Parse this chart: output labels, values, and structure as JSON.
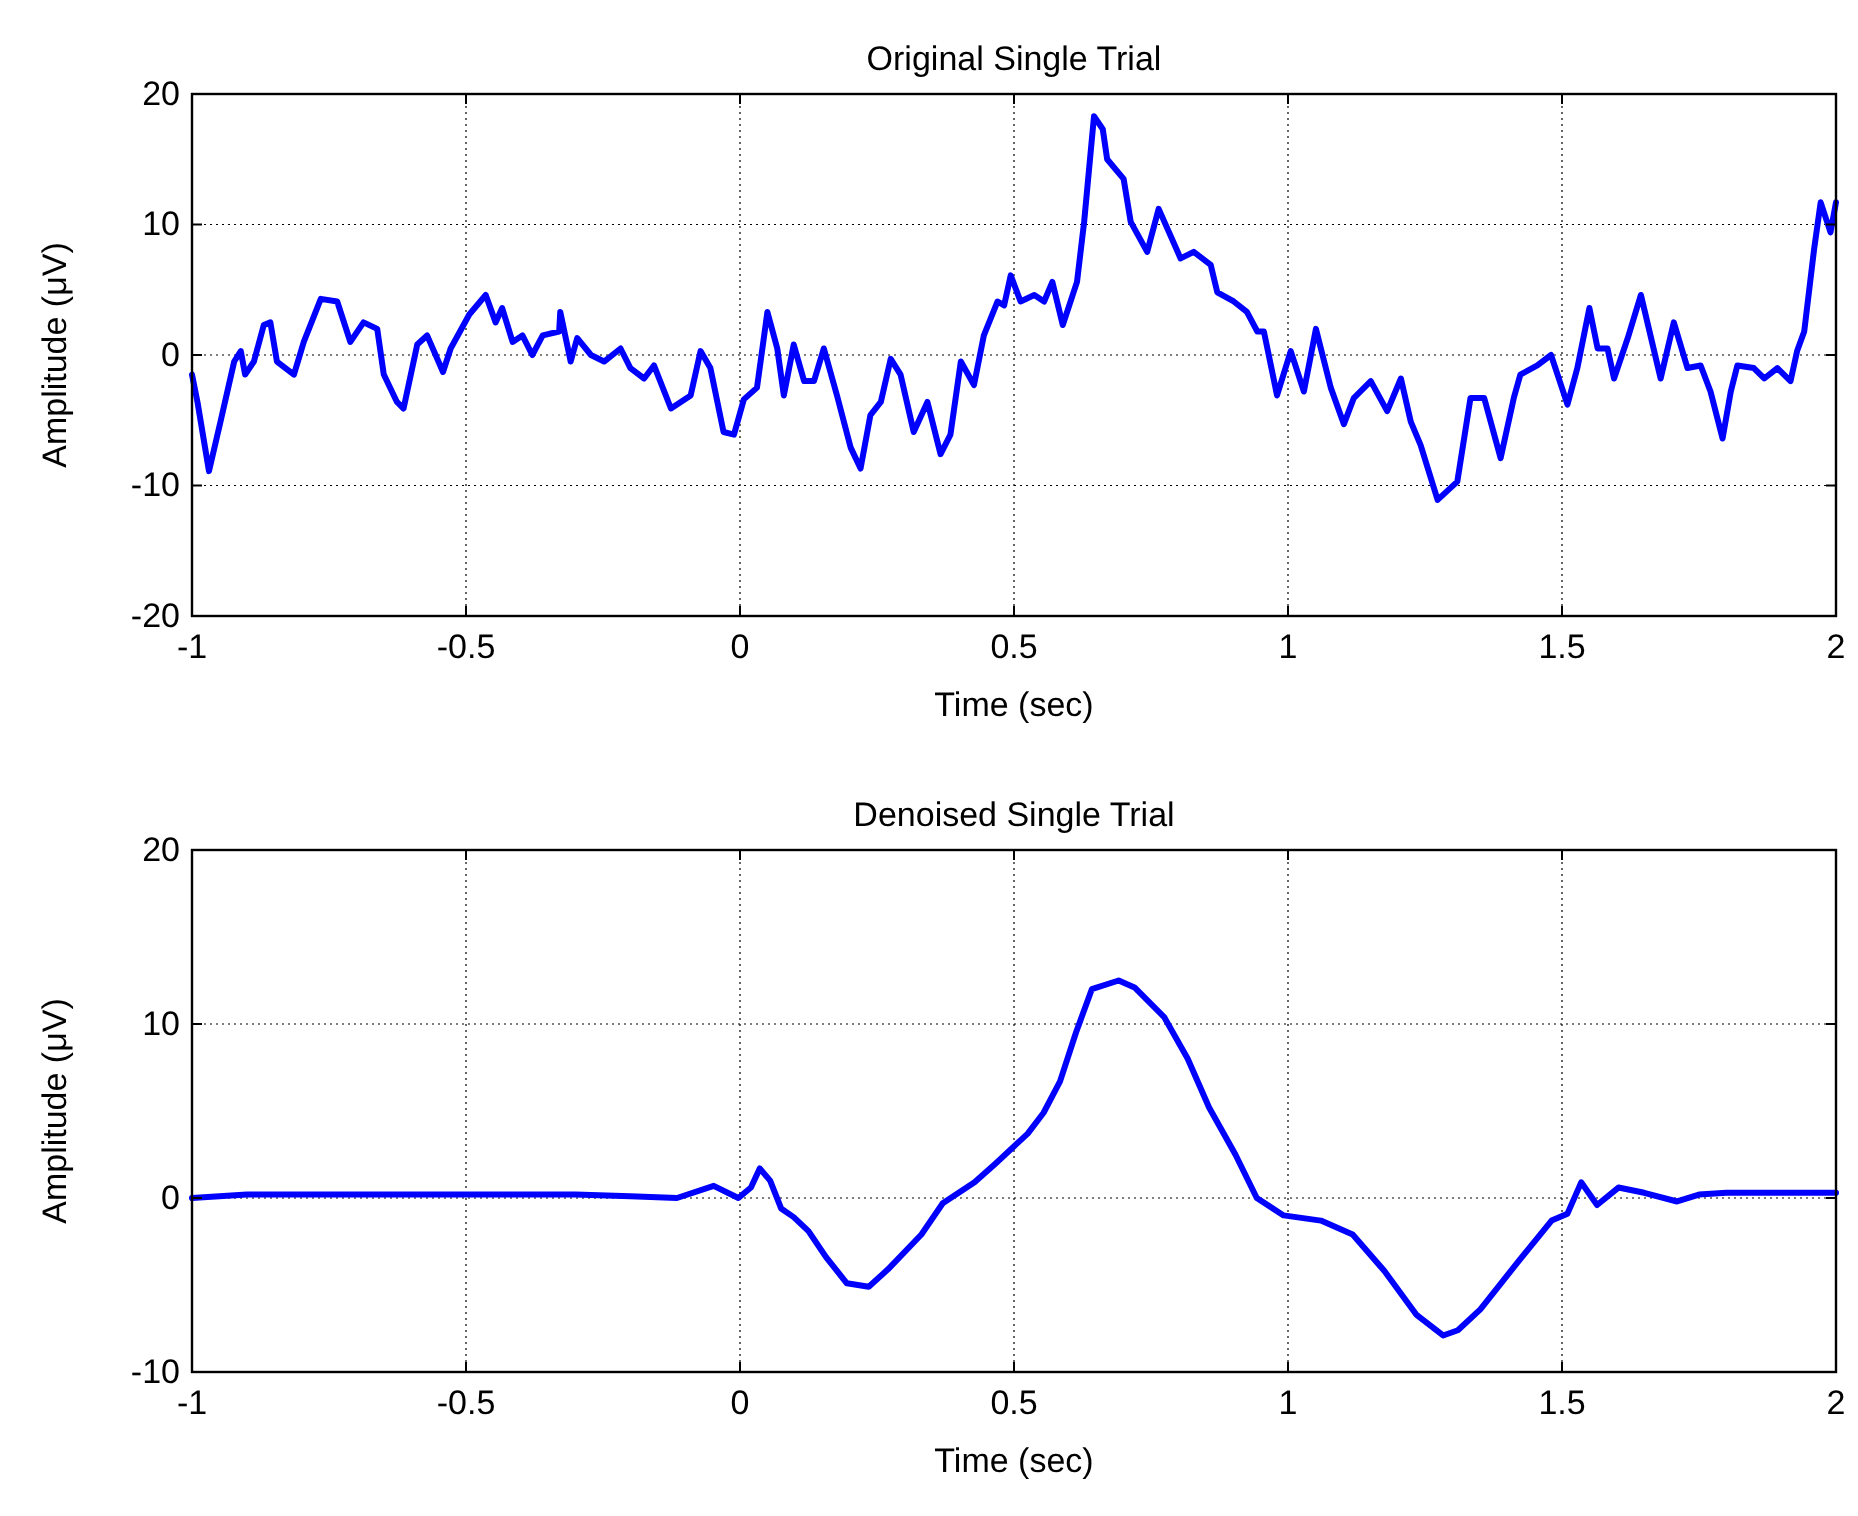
{
  "chart_data": [
    {
      "type": "line",
      "title": "Original Single Trial",
      "xlabel": "Time (sec)",
      "ylabel": "Amplitude (μV)",
      "xlim": [
        -1,
        2
      ],
      "xticks": [
        -1,
        -0.5,
        0,
        0.5,
        1,
        1.5,
        2
      ],
      "ylim": [
        -20,
        20
      ],
      "yticks": [
        -20,
        -10,
        0,
        10,
        20
      ],
      "grid": true,
      "line_style": "solid",
      "marker": "none",
      "series": [
        {
          "color": "#0000ff",
          "x": [
            -1.0,
            -0.99,
            -0.969,
            -0.948,
            -0.923,
            -0.911,
            -0.903,
            -0.887,
            -0.869,
            -0.857,
            -0.845,
            -0.814,
            -0.796,
            -0.765,
            -0.735,
            -0.711,
            -0.687,
            -0.662,
            -0.65,
            -0.626,
            -0.614,
            -0.589,
            -0.571,
            -0.542,
            -0.528,
            -0.494,
            -0.464,
            -0.446,
            -0.434,
            -0.415,
            -0.397,
            -0.379,
            -0.36,
            -0.33,
            -0.328,
            -0.309,
            -0.297,
            -0.272,
            -0.248,
            -0.218,
            -0.2,
            -0.175,
            -0.157,
            -0.126,
            -0.09,
            -0.072,
            -0.054,
            -0.03,
            -0.011,
            0.007,
            0.031,
            0.05,
            0.068,
            0.08,
            0.098,
            0.117,
            0.135,
            0.153,
            0.177,
            0.202,
            0.22,
            0.238,
            0.257,
            0.275,
            0.293,
            0.317,
            0.342,
            0.366,
            0.384,
            0.403,
            0.427,
            0.445,
            0.47,
            0.482,
            0.494,
            0.512,
            0.537,
            0.555,
            0.57,
            0.589,
            0.615,
            0.628,
            0.646,
            0.662,
            0.67,
            0.7,
            0.713,
            0.743,
            0.764,
            0.804,
            0.828,
            0.859,
            0.871,
            0.901,
            0.925,
            0.944,
            0.956,
            0.98,
            1.005,
            1.029,
            1.051,
            1.078,
            1.102,
            1.12,
            1.151,
            1.181,
            1.206,
            1.224,
            1.242,
            1.273,
            1.309,
            1.333,
            1.358,
            1.388,
            1.412,
            1.424,
            1.455,
            1.48,
            1.51,
            1.528,
            1.55,
            1.565,
            1.583,
            1.595,
            1.62,
            1.644,
            1.68,
            1.704,
            1.729,
            1.753,
            1.771,
            1.793,
            1.808,
            1.82,
            1.85,
            1.869,
            1.893,
            1.917,
            1.929,
            1.942,
            1.96,
            1.972,
            1.99,
            2.0
          ],
          "values": [
            -1.5,
            -3.6,
            -8.9,
            -5.1,
            -0.5,
            0.3,
            -1.5,
            -0.5,
            2.3,
            2.5,
            -0.5,
            -1.5,
            1.0,
            4.3,
            4.1,
            1.0,
            2.5,
            2.0,
            -1.5,
            -3.6,
            -4.1,
            0.8,
            1.5,
            -1.3,
            0.5,
            3.1,
            4.6,
            2.5,
            3.6,
            1.0,
            1.5,
            0.0,
            1.5,
            1.8,
            3.3,
            -0.5,
            1.3,
            0.0,
            -0.5,
            0.5,
            -1.0,
            -1.8,
            -0.8,
            -4.1,
            -3.1,
            0.3,
            -1.0,
            -5.9,
            -6.1,
            -3.4,
            -2.5,
            3.3,
            0.5,
            -3.1,
            0.8,
            -2.0,
            -2.0,
            0.5,
            -3.1,
            -7.1,
            -8.7,
            -4.6,
            -3.6,
            -0.3,
            -1.5,
            -5.9,
            -3.6,
            -7.6,
            -6.1,
            -0.5,
            -2.3,
            1.5,
            4.1,
            3.8,
            6.1,
            4.1,
            4.6,
            4.1,
            5.6,
            2.3,
            5.6,
            10.2,
            18.3,
            17.3,
            15.0,
            13.5,
            10.2,
            7.9,
            11.2,
            7.4,
            7.9,
            6.9,
            4.8,
            4.1,
            3.3,
            1.8,
            1.8,
            -3.1,
            0.3,
            -2.8,
            2.0,
            -2.5,
            -5.3,
            -3.3,
            -2.0,
            -4.3,
            -1.8,
            -5.1,
            -6.9,
            -11.1,
            -9.7,
            -3.3,
            -3.3,
            -7.9,
            -3.3,
            -1.5,
            -0.8,
            0.0,
            -3.8,
            -1.0,
            3.6,
            0.5,
            0.5,
            -1.8,
            1.3,
            4.6,
            -1.8,
            2.5,
            -1.0,
            -0.8,
            -2.8,
            -6.4,
            -2.8,
            -0.8,
            -1.0,
            -1.8,
            -1.0,
            -2.0,
            0.3,
            1.8,
            8.1,
            11.7,
            9.4,
            11.7
          ]
        }
      ]
    },
    {
      "type": "line",
      "title": "Denoised Single Trial",
      "xlabel": "Time (sec)",
      "ylabel": "Amplitude (μV)",
      "xlim": [
        -1,
        2
      ],
      "xticks": [
        -1,
        -0.5,
        0,
        0.5,
        1,
        1.5,
        2
      ],
      "ylim": [
        -10,
        20
      ],
      "yticks": [
        -10,
        0,
        10,
        20
      ],
      "grid": true,
      "line_style": "solid",
      "marker": "none",
      "series": [
        {
          "color": "#0000ff",
          "x": [
            -1.0,
            -0.9,
            -0.8,
            -0.7,
            -0.6,
            -0.5,
            -0.4,
            -0.3,
            -0.2,
            -0.115,
            -0.048,
            -0.003,
            0.02,
            0.036,
            0.055,
            0.075,
            0.098,
            0.125,
            0.157,
            0.195,
            0.235,
            0.27,
            0.331,
            0.37,
            0.428,
            0.467,
            0.525,
            0.554,
            0.584,
            0.613,
            0.642,
            0.691,
            0.72,
            0.774,
            0.817,
            0.856,
            0.904,
            0.943,
            0.992,
            1.06,
            1.118,
            1.176,
            1.234,
            1.283,
            1.31,
            1.351,
            1.419,
            1.481,
            1.51,
            1.535,
            1.564,
            1.603,
            1.65,
            1.71,
            1.75,
            1.8,
            1.9,
            2.0
          ],
          "values": [
            0,
            0.2,
            0.2,
            0.2,
            0.2,
            0.2,
            0.2,
            0.2,
            0.1,
            0,
            0.7,
            0,
            0.6,
            1.7,
            1.0,
            -0.6,
            -1.1,
            -1.9,
            -3.4,
            -4.9,
            -5.1,
            -4.1,
            -2.1,
            -0.3,
            0.9,
            2.0,
            3.7,
            4.9,
            6.7,
            9.5,
            12.0,
            12.5,
            12.1,
            10.4,
            8.0,
            5.2,
            2.5,
            0,
            -1.0,
            -1.3,
            -2.1,
            -4.2,
            -6.7,
            -7.9,
            -7.6,
            -6.4,
            -3.7,
            -1.3,
            -0.9,
            0.9,
            -0.4,
            0.6,
            0.3,
            -0.2,
            0.2,
            0.3,
            0.3,
            0.3
          ]
        }
      ]
    }
  ]
}
